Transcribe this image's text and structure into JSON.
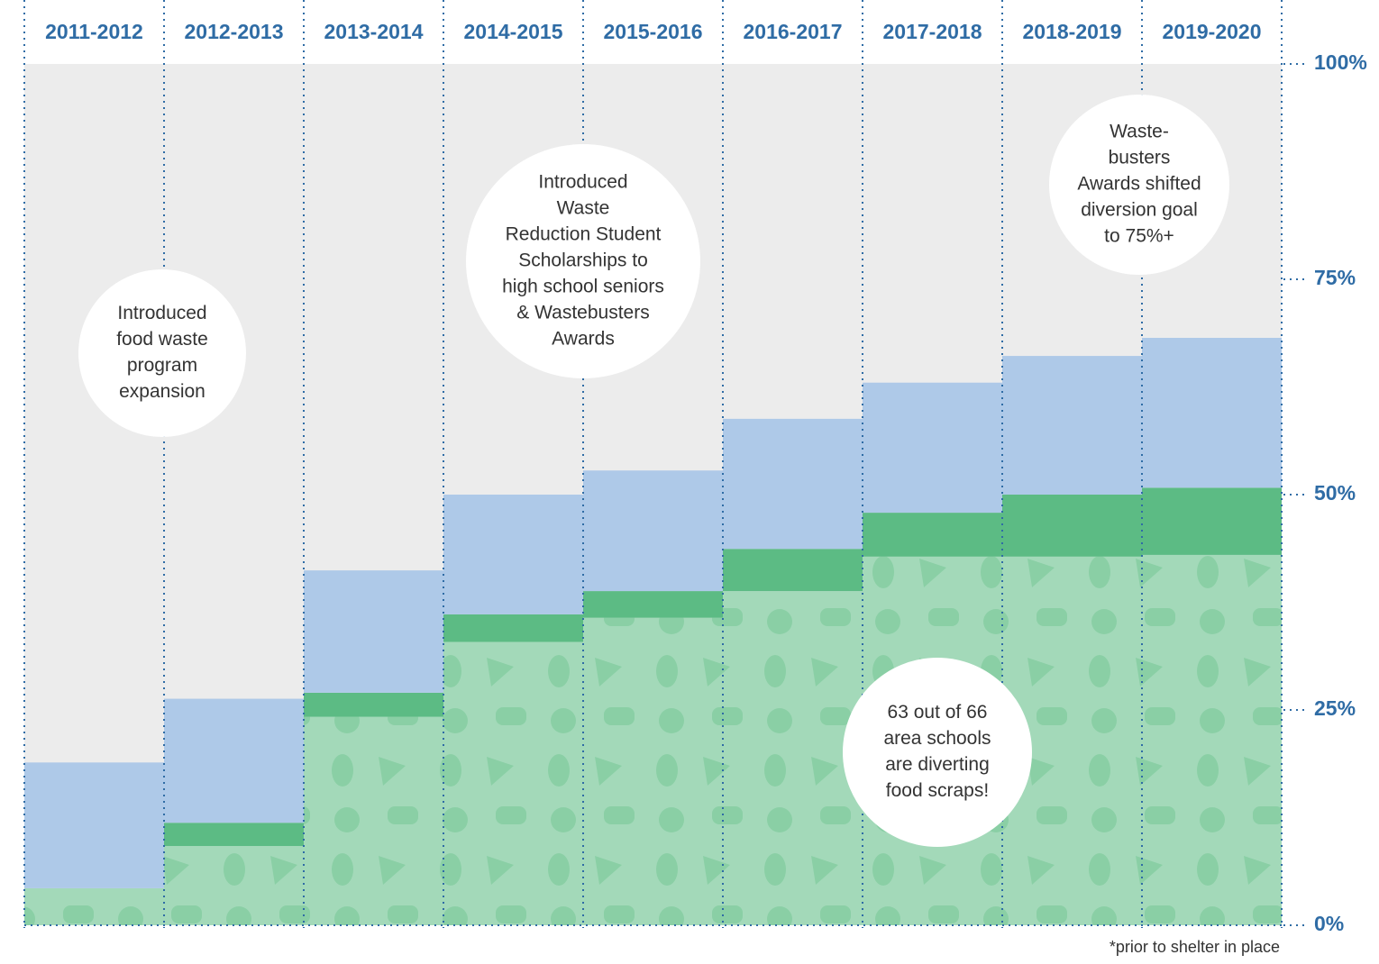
{
  "chart_data": {
    "type": "stacked_bar",
    "categories": [
      "2011-2012",
      "2012-2013",
      "2013-2014",
      "2014-2015",
      "2015-2016",
      "2016-2017",
      "2017-2018",
      "2018-2019",
      "2019-2020"
    ],
    "series": [
      {
        "color": "#a3d9b9",
        "values": [
          4.3,
          9.2,
          24.2,
          32.9,
          35.7,
          38.8,
          42.8,
          42.8,
          43.0
        ]
      },
      {
        "color": "#5cbb84",
        "values": [
          0,
          2.7,
          2.8,
          3.2,
          3.1,
          4.9,
          5.1,
          7.2,
          7.8
        ]
      },
      {
        "color": "#aec9e8",
        "values": [
          14.6,
          14.4,
          14.2,
          13.9,
          14.0,
          15.1,
          15.1,
          16.1,
          17.4
        ]
      }
    ],
    "ylim": [
      0,
      100
    ],
    "yticks": [
      {
        "value": 0,
        "label": "0%"
      },
      {
        "value": 25,
        "label": "25%"
      },
      {
        "value": 50,
        "label": "50%"
      },
      {
        "value": 75,
        "label": "75%"
      },
      {
        "value": 100,
        "label": "100%"
      }
    ],
    "annotations": [
      [
        "Introduced",
        "food waste",
        "program",
        "expansion"
      ],
      [
        "Introduced",
        "Waste",
        "Reduction Student",
        "Scholarships to",
        "high school seniors",
        "& Wastebusters",
        "Awards"
      ],
      [
        "Waste-",
        "busters",
        "Awards shifted",
        "diversion goal",
        "to 75%+"
      ],
      [
        "63 out of 66",
        "area schools",
        "are diverting",
        "food scraps!"
      ]
    ],
    "footnote": "*prior to shelter in place"
  }
}
